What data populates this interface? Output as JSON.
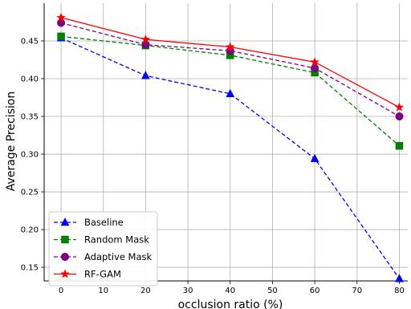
{
  "chart_data": {
    "type": "line",
    "title": "",
    "xlabel": "occlusion ratio (%)",
    "ylabel": "Average Precision",
    "x": [
      0,
      20,
      40,
      60,
      80
    ],
    "xlim": [
      -4,
      82
    ],
    "ylim": [
      0.132,
      0.5
    ],
    "xticks": [
      0,
      10,
      20,
      30,
      40,
      50,
      60,
      70,
      80
    ],
    "xtick_labels": [
      "0",
      "10",
      "20",
      "30",
      "40",
      "50",
      "60",
      "70",
      "80"
    ],
    "yticks": [
      0.15,
      0.2,
      0.25,
      0.3,
      0.35,
      0.4,
      0.45
    ],
    "ytick_labels": [
      "0.15",
      "0.20",
      "0.25",
      "0.30",
      "0.35",
      "0.40",
      "0.45"
    ],
    "grid": true,
    "legend_position": "bottom-left",
    "series": [
      {
        "name": "Baseline",
        "values": [
          0.454,
          0.404,
          0.38,
          0.294,
          0.135
        ],
        "color": "#0000ff",
        "dash": "dashed",
        "marker": "triangle"
      },
      {
        "name": "Random Mask",
        "values": [
          0.456,
          0.444,
          0.431,
          0.408,
          0.311
        ],
        "color": "#008000",
        "dash": "dashed",
        "marker": "square"
      },
      {
        "name": "Adaptive Mask",
        "values": [
          0.474,
          0.445,
          0.437,
          0.414,
          0.35
        ],
        "color": "#800080",
        "dash": "dashed",
        "marker": "circle"
      },
      {
        "name": "RF-GAM",
        "values": [
          0.481,
          0.452,
          0.442,
          0.422,
          0.362
        ],
        "color": "#ff0000",
        "dash": "solid",
        "marker": "star"
      }
    ]
  }
}
